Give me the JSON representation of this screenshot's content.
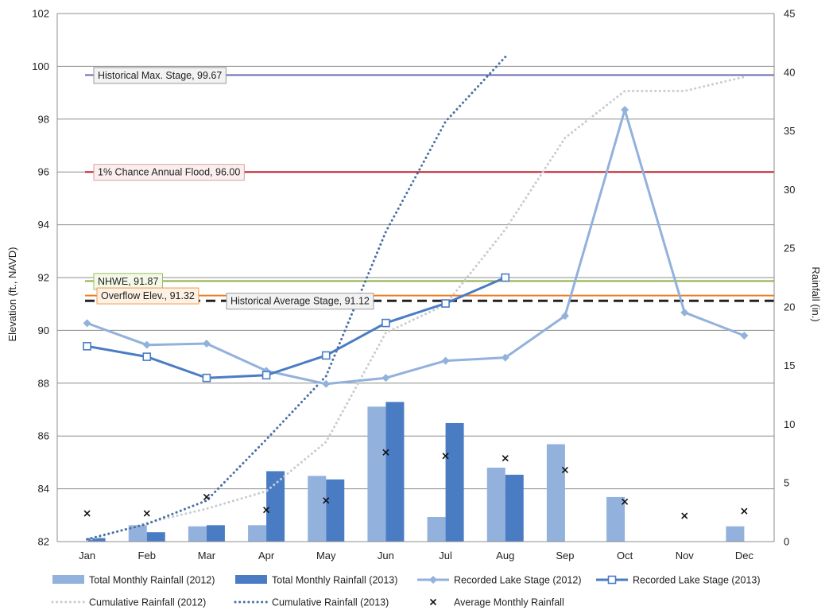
{
  "chart_data": {
    "type": "bar",
    "categories": [
      "Jan",
      "Feb",
      "Mar",
      "Apr",
      "May",
      "Jun",
      "Jul",
      "Aug",
      "Sep",
      "Oct",
      "Nov",
      "Dec"
    ],
    "y_left": {
      "label": "Elevation (ft., NAVD)",
      "min": 82,
      "max": 102,
      "ticks": [
        "82",
        "84",
        "86",
        "88",
        "90",
        "92",
        "94",
        "96",
        "98",
        "100",
        "102"
      ]
    },
    "y_right": {
      "label": "Rainfall (in.)",
      "min": 0,
      "max": 45,
      "ticks": [
        "0",
        "5",
        "10",
        "15",
        "20",
        "25",
        "30",
        "35",
        "40",
        "45"
      ]
    },
    "grid": true,
    "legend_position": "bottom",
    "series": [
      {
        "name": "Total Monthly Rainfall (2012)",
        "kind": "bar",
        "axis": "right",
        "color": "#92b1dc",
        "values": [
          0,
          1.4,
          1.3,
          1.4,
          5.6,
          11.5,
          2.1,
          6.3,
          8.3,
          3.8,
          null,
          1.3
        ]
      },
      {
        "name": "Total Monthly Rainfall (2013)",
        "kind": "bar",
        "axis": "right",
        "color": "#4a7cc4",
        "values": [
          0.3,
          0.8,
          1.4,
          6.0,
          5.3,
          11.9,
          10.1,
          5.7,
          null,
          null,
          null,
          null
        ]
      },
      {
        "name": "Recorded Lake Stage (2012)",
        "kind": "line",
        "axis": "left",
        "color": "#92b1dc",
        "values": [
          90.27,
          89.45,
          89.5,
          88.47,
          87.97,
          88.2,
          88.85,
          88.97,
          90.55,
          98.35,
          90.68,
          89.8
        ]
      },
      {
        "name": "Recorded Lake Stage (2013)",
        "kind": "line",
        "axis": "left",
        "color": "#4a7cc4",
        "values": [
          89.4,
          89.0,
          88.2,
          88.3,
          89.05,
          90.28,
          91.02,
          92.0,
          null,
          null,
          null,
          null
        ]
      },
      {
        "name": "Cumulative Rainfall (2012)",
        "kind": "dotted-line",
        "axis": "right",
        "color": "#c8ccd2",
        "values": [
          0.1,
          1.6,
          2.8,
          4.3,
          8.5,
          17.8,
          20.2,
          26.6,
          34.4,
          38.4,
          38.4,
          39.6
        ]
      },
      {
        "name": "Cumulative Rainfall (2013)",
        "kind": "dotted-line",
        "axis": "right",
        "color": "#4a6fa5",
        "values": [
          0.2,
          1.5,
          3.5,
          8.7,
          14.1,
          26.4,
          35.8,
          41.3,
          null,
          null,
          null,
          null
        ]
      },
      {
        "name": "Average Monthly Rainfall",
        "kind": "marker",
        "axis": "right",
        "color": "#111111",
        "values": [
          2.4,
          2.4,
          3.8,
          2.7,
          3.5,
          7.6,
          7.3,
          7.1,
          6.1,
          3.4,
          2.2,
          2.6
        ]
      }
    ],
    "reference_lines": [
      {
        "label": "Historical Max. Stage, 99.67",
        "value": 99.67,
        "color": "#6a6fb0",
        "style": "solid",
        "box_fill": "#f2f2f2",
        "box_stroke": "#9a9a9a"
      },
      {
        "label": "1% Chance Annual Flood, 96.00",
        "value": 96.0,
        "color": "#c0202a",
        "style": "solid",
        "box_fill": "#fbeeee",
        "box_stroke": "#d9a3a3"
      },
      {
        "label": "NHWE, 91.87",
        "value": 91.87,
        "color": "#8fb14a",
        "style": "solid",
        "box_fill": "#f4f8e9",
        "box_stroke": "#9fbf5e"
      },
      {
        "label": "Overflow Elev., 91.32",
        "value": 91.32,
        "color": "#ee7d1e",
        "style": "solid",
        "box_fill": "#fdf1e4",
        "box_stroke": "#ee9a52"
      },
      {
        "label": "Historical Average Stage, 91.12",
        "value": 91.12,
        "color": "#222222",
        "style": "dashed",
        "box_fill": "#f2f2f2",
        "box_stroke": "#9a9a9a"
      }
    ]
  }
}
